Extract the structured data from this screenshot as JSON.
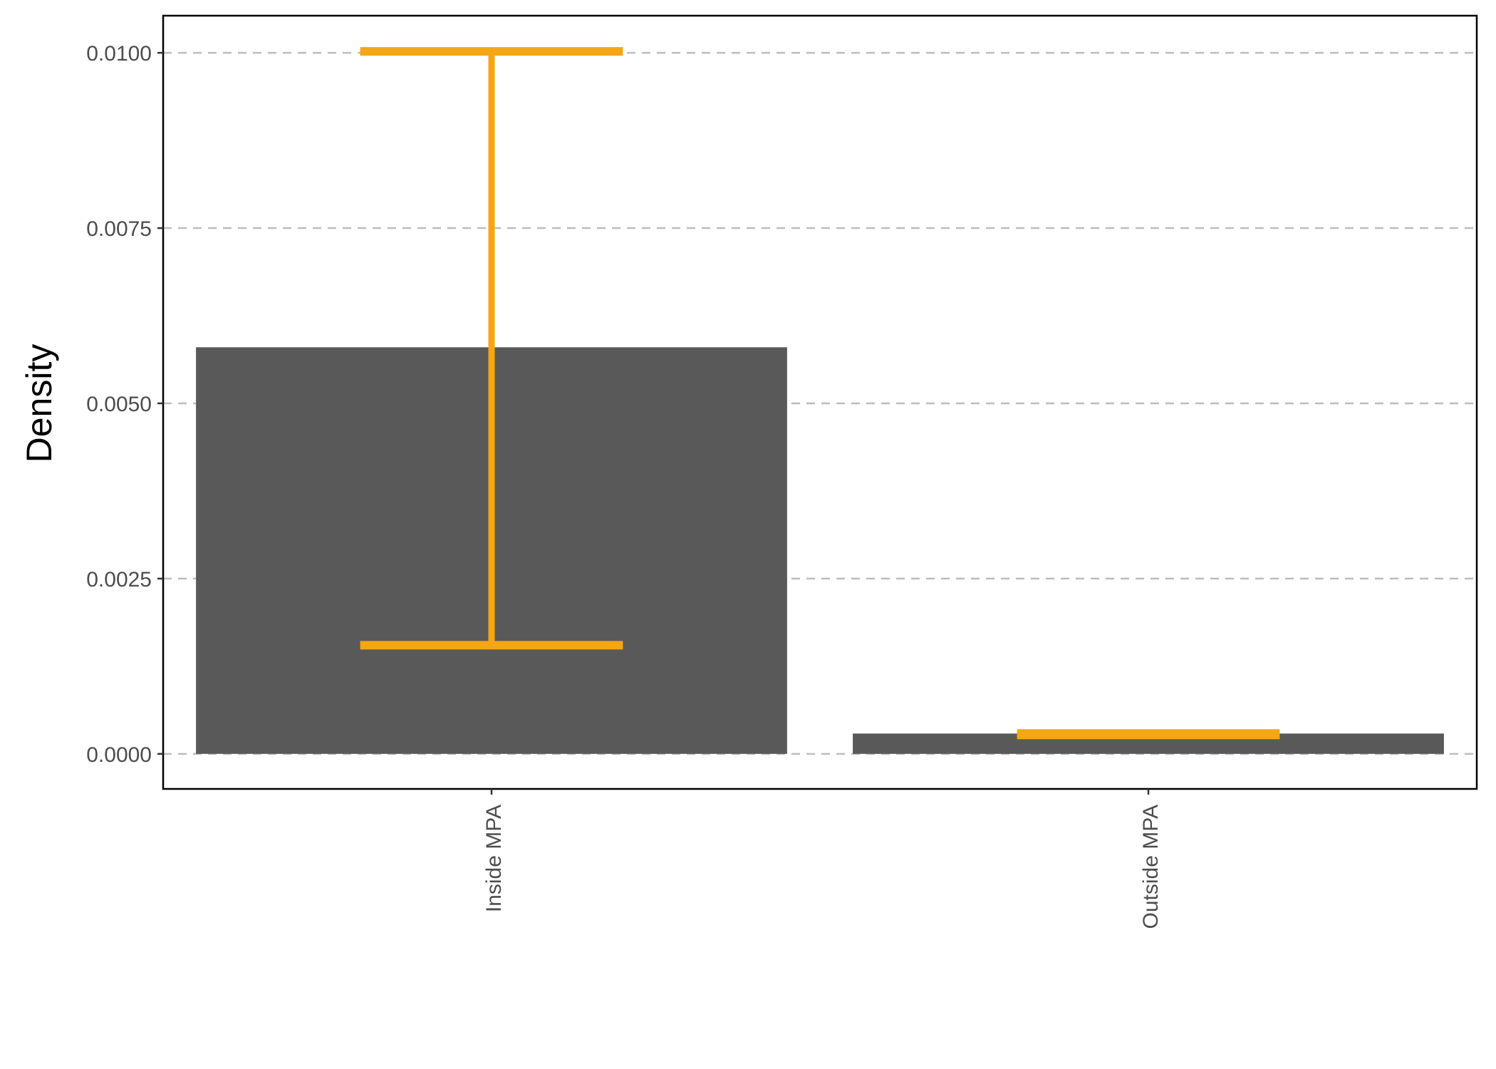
{
  "chart_data": {
    "type": "bar",
    "title": "",
    "xlabel": "",
    "ylabel": "Density",
    "categories": [
      "Inside MPA",
      "Outside MPA"
    ],
    "values": [
      0.0058,
      0.00029
    ],
    "error_bars": [
      {
        "lower": 0.00155,
        "upper": 0.01002
      },
      {
        "lower": 0.00023,
        "upper": 0.00033
      }
    ],
    "ylim": [
      -0.0005,
      0.01053
    ],
    "yticks": [
      0.0,
      0.0025,
      0.005,
      0.0075,
      0.01
    ],
    "ytick_labels": [
      "0.0000",
      "0.0025",
      "0.0050",
      "0.0075",
      "0.0100"
    ],
    "grid": "horizontal dashed",
    "bar_color": "#595959",
    "error_bar_color": "#F5A614",
    "grid_color": "#BDBDBD"
  }
}
